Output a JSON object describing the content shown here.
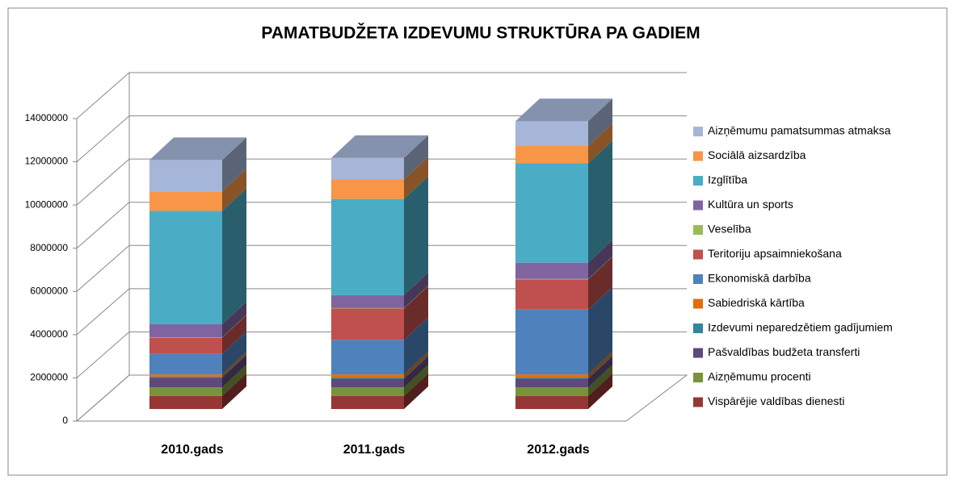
{
  "chart_data": {
    "type": "bar3d_stacked",
    "title": "PAMATBUDŽETA IZDEVUMU STRUKTŪRA PA GADIEM",
    "categories": [
      "2010.gads",
      "2011.gads",
      "2012.gads"
    ],
    "ylim": [
      0,
      14000000
    ],
    "yticks": [
      0,
      2000000,
      4000000,
      6000000,
      8000000,
      10000000,
      12000000,
      14000000
    ],
    "grid": true,
    "legend": "right",
    "series": [
      {
        "name": "Vispārējie valdības dienesti",
        "color": "#953735",
        "values": [
          600000,
          600000,
          600000
        ]
      },
      {
        "name": "Aizņēmumu procenti",
        "color": "#77933c",
        "values": [
          400000,
          400000,
          400000
        ]
      },
      {
        "name": "Pašvaldības budžeta transferti",
        "color": "#5f497a",
        "values": [
          450000,
          400000,
          400000
        ]
      },
      {
        "name": "Izdevumi neparedzētiem gadījumiem",
        "color": "#31859c",
        "values": [
          50000,
          50000,
          50000
        ]
      },
      {
        "name": "Sabiedriskā kārtība",
        "color": "#e46c0a",
        "values": [
          100000,
          150000,
          150000
        ]
      },
      {
        "name": "Ekonomiskā darbība",
        "color": "#4f81bd",
        "values": [
          950000,
          1600000,
          3000000
        ]
      },
      {
        "name": "Teritoriju apsaimniekošana",
        "color": "#c0504d",
        "values": [
          750000,
          1450000,
          1400000
        ]
      },
      {
        "name": "Veselība",
        "color": "#9bbb59",
        "values": [
          20000,
          20000,
          20000
        ]
      },
      {
        "name": "Kultūra un sports",
        "color": "#8064a2",
        "values": [
          600000,
          600000,
          750000
        ]
      },
      {
        "name": "Izglītība",
        "color": "#4bacc6",
        "values": [
          5250000,
          4450000,
          4600000
        ]
      },
      {
        "name": "Sociālā aizsardzība",
        "color": "#f79646",
        "values": [
          900000,
          900000,
          800000
        ]
      },
      {
        "name": "Aizņēmumu pamatsummas atmaksa",
        "color": "#a5b6d8",
        "values": [
          1450000,
          1000000,
          1150000
        ]
      }
    ]
  }
}
